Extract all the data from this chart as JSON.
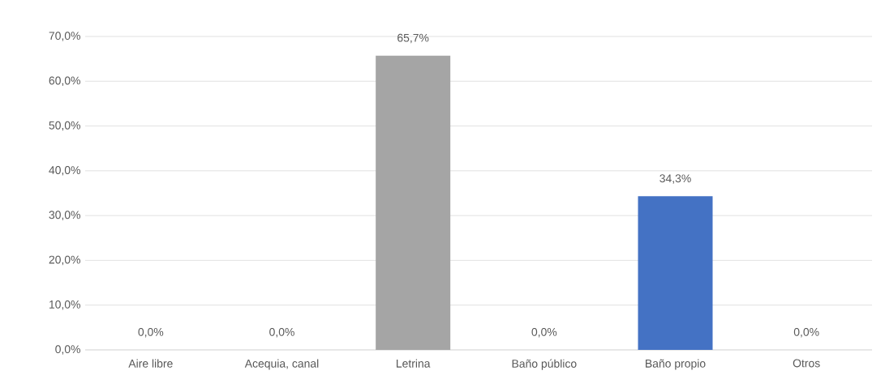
{
  "chart_data": {
    "type": "bar",
    "categories": [
      "Aire libre",
      "Acequia, canal",
      "Letrina",
      "Baño público",
      "Baño propio",
      "Otros"
    ],
    "values": [
      0,
      0,
      65.7,
      0,
      34.3,
      0
    ],
    "colors": [
      "#a5a5a5",
      "#a5a5a5",
      "#a5a5a5",
      "#a5a5a5",
      "#4472c4",
      "#a5a5a5"
    ],
    "value_labels": [
      "0,0%",
      "0,0%",
      "65,7%",
      "0,0%",
      "34,3%",
      "0,0%"
    ],
    "ylim": [
      0,
      70
    ],
    "yticks": [
      {
        "value": 0,
        "label": "0,0%"
      },
      {
        "value": 10,
        "label": "10,0%"
      },
      {
        "value": 20,
        "label": "20,0%"
      },
      {
        "value": 30,
        "label": "30,0%"
      },
      {
        "value": 40,
        "label": "40,0%"
      },
      {
        "value": 50,
        "label": "50,0%"
      },
      {
        "value": 60,
        "label": "60,0%"
      },
      {
        "value": 70,
        "label": "70,0%"
      }
    ],
    "grid": "y"
  }
}
